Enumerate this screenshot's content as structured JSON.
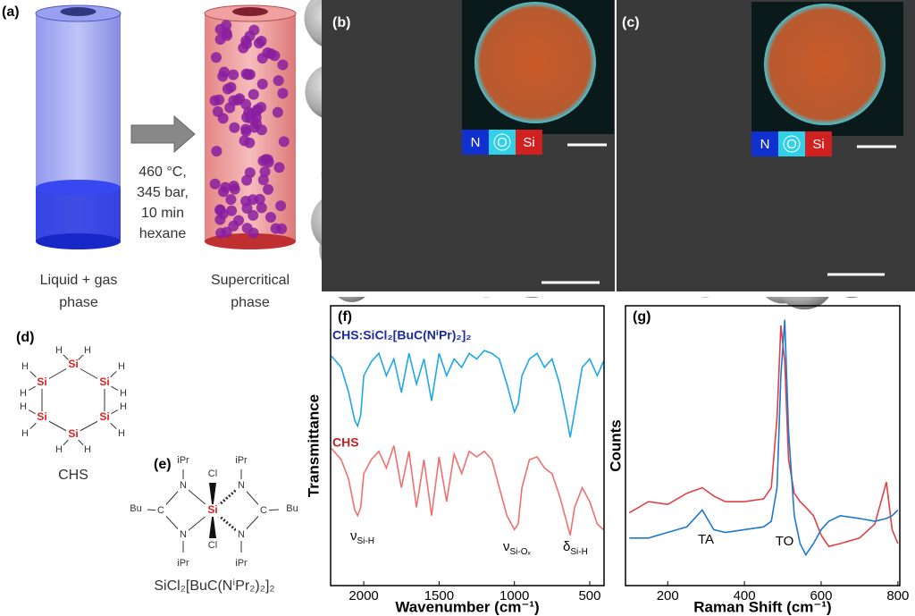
{
  "panels": {
    "a": {
      "label": "(a)",
      "conditions": [
        "460 °C,",
        "345 bar,",
        "10 min",
        "hexane"
      ],
      "left_caption": [
        "Liquid + gas",
        "phase"
      ],
      "right_caption": [
        "Supercritical",
        "phase"
      ]
    },
    "b": {
      "label": "(b)",
      "legend": [
        "N",
        "O",
        "Si"
      ]
    },
    "c": {
      "label": "(c)",
      "legend": [
        "N",
        "O",
        "Si"
      ]
    },
    "d": {
      "label": "(d)",
      "si": [
        "Si",
        "Si",
        "Si",
        "Si",
        "Si",
        "Si"
      ],
      "h": [
        "H",
        "H",
        "H",
        "H",
        "H",
        "H",
        "H",
        "H",
        "H",
        "H",
        "H",
        "H"
      ],
      "name": "CHS"
    },
    "e": {
      "label": "(e)",
      "ipr": [
        "iPr",
        "iPr",
        "iPr",
        "iPr"
      ],
      "n": [
        "N",
        "N",
        "N",
        "N"
      ],
      "c": [
        "C",
        "C"
      ],
      "bu": [
        "Bu",
        "Bu"
      ],
      "si": "Si",
      "cl": [
        "Cl",
        "Cl"
      ],
      "name": "SiCl₂[BuC(NⁱPr₂)₂]₂"
    }
  },
  "chart_data": [
    {
      "type": "line",
      "panel_label": "(f)",
      "xlabel": "Wavenumber (cm⁻¹)",
      "ylabel": "Transmittance",
      "x": [
        2214,
        2150,
        2100,
        2060,
        2040,
        2020,
        2000,
        1950,
        1900,
        1850,
        1800,
        1750,
        1700,
        1650,
        1600,
        1550,
        1500,
        1450,
        1400,
        1350,
        1300,
        1250,
        1200,
        1150,
        1100,
        1050,
        1000,
        975,
        950,
        900,
        850,
        800,
        750,
        700,
        650,
        630,
        600,
        550,
        500,
        450,
        410
      ],
      "xlim": [
        2220,
        405
      ],
      "xticks": [
        2000,
        1500,
        1000,
        500
      ],
      "ylim": [
        0,
        100
      ],
      "series": [
        {
          "name": "CHS:SiCl₂[BuC(NⁱPr)₂]₂",
          "color": "#1ea7e8",
          "values": [
            82,
            78,
            69,
            59,
            57,
            61,
            75,
            80,
            83,
            75,
            81,
            69,
            83,
            72,
            81,
            66,
            83,
            75,
            81,
            78,
            83,
            81,
            84,
            83,
            81,
            72,
            62,
            65,
            75,
            81,
            83,
            78,
            81,
            72,
            59,
            53,
            62,
            78,
            81,
            75,
            80
          ]
        },
        {
          "name": "CHS",
          "color": "#f07070",
          "values": [
            49,
            45,
            38,
            27,
            25,
            28,
            40,
            45,
            48,
            42,
            50,
            35,
            48,
            28,
            45,
            25,
            46,
            30,
            47,
            40,
            48,
            46,
            48,
            45,
            35,
            25,
            20,
            22,
            35,
            45,
            46,
            42,
            40,
            32,
            22,
            18,
            28,
            35,
            30,
            22,
            20
          ]
        }
      ],
      "annotations": [
        {
          "symbol": "ν",
          "sub": "Si-H"
        },
        {
          "symbol": "ν",
          "sub": "Si-Oₓ"
        },
        {
          "symbol": "δ",
          "sub": "Si-H"
        }
      ]
    },
    {
      "type": "line",
      "panel_label": "(g)",
      "xlabel": "Raman Shift (cm⁻¹)",
      "ylabel": "Counts",
      "x": [
        100,
        150,
        200,
        250,
        290,
        320,
        350,
        400,
        450,
        470,
        485,
        495,
        505,
        515,
        530,
        545,
        560,
        580,
        600,
        620,
        650,
        700,
        740,
        770,
        785,
        800
      ],
      "xlim": [
        90,
        805
      ],
      "xticks": [
        200,
        400,
        600,
        800
      ],
      "ylim": [
        0,
        100
      ],
      "series": [
        {
          "color": "#e04048",
          "values": [
            26,
            30,
            29,
            33,
            35,
            32,
            30,
            30,
            31,
            35,
            60,
            93,
            80,
            45,
            33,
            30,
            28,
            25,
            18,
            14,
            15,
            17,
            22,
            37,
            20,
            15
          ]
        },
        {
          "color": "#1e78d0",
          "values": [
            17,
            17,
            19,
            21,
            27,
            20,
            19,
            20,
            21,
            23,
            35,
            75,
            95,
            55,
            25,
            15,
            11,
            15,
            20,
            23,
            25,
            24,
            23,
            24,
            25,
            27
          ]
        }
      ],
      "annotations": [
        {
          "text": "TA"
        },
        {
          "text": "TO"
        }
      ]
    }
  ]
}
